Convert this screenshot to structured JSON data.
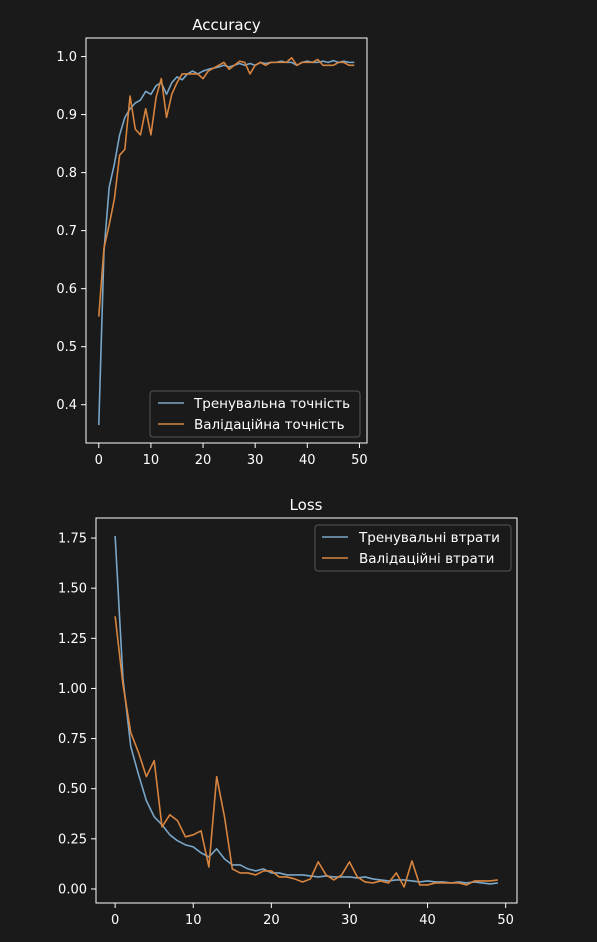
{
  "colors": {
    "background": "#1a1a1a",
    "series_train": "#7aa6c8",
    "series_val": "#d7843f"
  },
  "chart_data": [
    {
      "type": "line",
      "title": "Accuracy",
      "xlabel": "",
      "ylabel": "",
      "xlim": [
        -2.45,
        51.45
      ],
      "ylim": [
        0.334,
        1.032
      ],
      "xticks": [
        0,
        10,
        20,
        30,
        40,
        50
      ],
      "yticks": [
        0.4,
        0.5,
        0.6,
        0.7,
        0.8,
        0.9,
        1.0
      ],
      "ytick_labels": [
        "0.4",
        "0.5",
        "0.6",
        "0.7",
        "0.8",
        "0.9",
        "1.0"
      ],
      "grid": false,
      "legend_position": "lower-right",
      "x": [
        0,
        1,
        2,
        3,
        4,
        5,
        6,
        7,
        8,
        9,
        10,
        11,
        12,
        13,
        14,
        15,
        16,
        17,
        18,
        19,
        20,
        21,
        22,
        23,
        24,
        25,
        26,
        27,
        28,
        29,
        30,
        31,
        32,
        33,
        34,
        35,
        36,
        37,
        38,
        39,
        40,
        41,
        42,
        43,
        44,
        45,
        46,
        47,
        48,
        49
      ],
      "series": [
        {
          "name": "Тренувальна точність",
          "color": "#7aa6c8",
          "values": [
            0.365,
            0.665,
            0.775,
            0.815,
            0.865,
            0.895,
            0.91,
            0.92,
            0.925,
            0.94,
            0.935,
            0.95,
            0.955,
            0.935,
            0.955,
            0.965,
            0.96,
            0.97,
            0.975,
            0.97,
            0.975,
            0.978,
            0.98,
            0.982,
            0.985,
            0.982,
            0.985,
            0.988,
            0.985,
            0.988,
            0.985,
            0.99,
            0.988,
            0.99,
            0.99,
            0.992,
            0.99,
            0.99,
            0.985,
            0.99,
            0.992,
            0.99,
            0.99,
            0.992,
            0.99,
            0.993,
            0.99,
            0.992,
            0.99,
            0.99
          ]
        },
        {
          "name": "Валідаційна точність",
          "color": "#d7843f",
          "values": [
            0.552,
            0.67,
            0.71,
            0.755,
            0.83,
            0.84,
            0.932,
            0.875,
            0.865,
            0.91,
            0.865,
            0.93,
            0.962,
            0.895,
            0.935,
            0.955,
            0.97,
            0.97,
            0.97,
            0.97,
            0.962,
            0.975,
            0.98,
            0.985,
            0.99,
            0.978,
            0.985,
            0.992,
            0.99,
            0.97,
            0.985,
            0.99,
            0.985,
            0.99,
            0.99,
            0.99,
            0.99,
            0.998,
            0.985,
            0.99,
            0.99,
            0.99,
            0.995,
            0.985,
            0.985,
            0.985,
            0.99,
            0.99,
            0.985,
            0.985
          ]
        }
      ]
    },
    {
      "type": "line",
      "title": "Loss",
      "xlabel": "",
      "ylabel": "",
      "xlim": [
        -2.45,
        51.45
      ],
      "ylim": [
        -0.07,
        1.85
      ],
      "xticks": [
        0,
        10,
        20,
        30,
        40,
        50
      ],
      "yticks": [
        0.0,
        0.25,
        0.5,
        0.75,
        1.0,
        1.25,
        1.5,
        1.75
      ],
      "ytick_labels": [
        "0.00",
        "0.25",
        "0.50",
        "0.75",
        "1.00",
        "1.25",
        "1.50",
        "1.75"
      ],
      "grid": false,
      "legend_position": "upper-right",
      "x": [
        0,
        1,
        2,
        3,
        4,
        5,
        6,
        7,
        8,
        9,
        10,
        11,
        12,
        13,
        14,
        15,
        16,
        17,
        18,
        19,
        20,
        21,
        22,
        23,
        24,
        25,
        26,
        27,
        28,
        29,
        30,
        31,
        32,
        33,
        34,
        35,
        36,
        37,
        38,
        39,
        40,
        41,
        42,
        43,
        44,
        45,
        46,
        47,
        48,
        49
      ],
      "series": [
        {
          "name": "Тренувальні втрати",
          "color": "#7aa6c8",
          "values": [
            1.76,
            1.05,
            0.71,
            0.57,
            0.44,
            0.36,
            0.32,
            0.27,
            0.24,
            0.22,
            0.21,
            0.18,
            0.16,
            0.2,
            0.15,
            0.12,
            0.12,
            0.1,
            0.09,
            0.1,
            0.08,
            0.08,
            0.07,
            0.07,
            0.07,
            0.065,
            0.06,
            0.065,
            0.06,
            0.06,
            0.06,
            0.055,
            0.06,
            0.05,
            0.045,
            0.04,
            0.045,
            0.045,
            0.04,
            0.035,
            0.04,
            0.035,
            0.035,
            0.03,
            0.035,
            0.03,
            0.035,
            0.03,
            0.025,
            0.03
          ]
        },
        {
          "name": "Валідаційні втрати",
          "color": "#d7843f",
          "values": [
            1.36,
            1.02,
            0.78,
            0.68,
            0.56,
            0.64,
            0.31,
            0.37,
            0.34,
            0.26,
            0.27,
            0.29,
            0.11,
            0.56,
            0.36,
            0.1,
            0.08,
            0.08,
            0.07,
            0.09,
            0.09,
            0.06,
            0.06,
            0.05,
            0.035,
            0.05,
            0.135,
            0.07,
            0.045,
            0.07,
            0.135,
            0.06,
            0.035,
            0.03,
            0.04,
            0.03,
            0.08,
            0.01,
            0.14,
            0.02,
            0.02,
            0.03,
            0.03,
            0.03,
            0.03,
            0.02,
            0.04,
            0.04,
            0.04,
            0.045
          ]
        }
      ]
    }
  ]
}
